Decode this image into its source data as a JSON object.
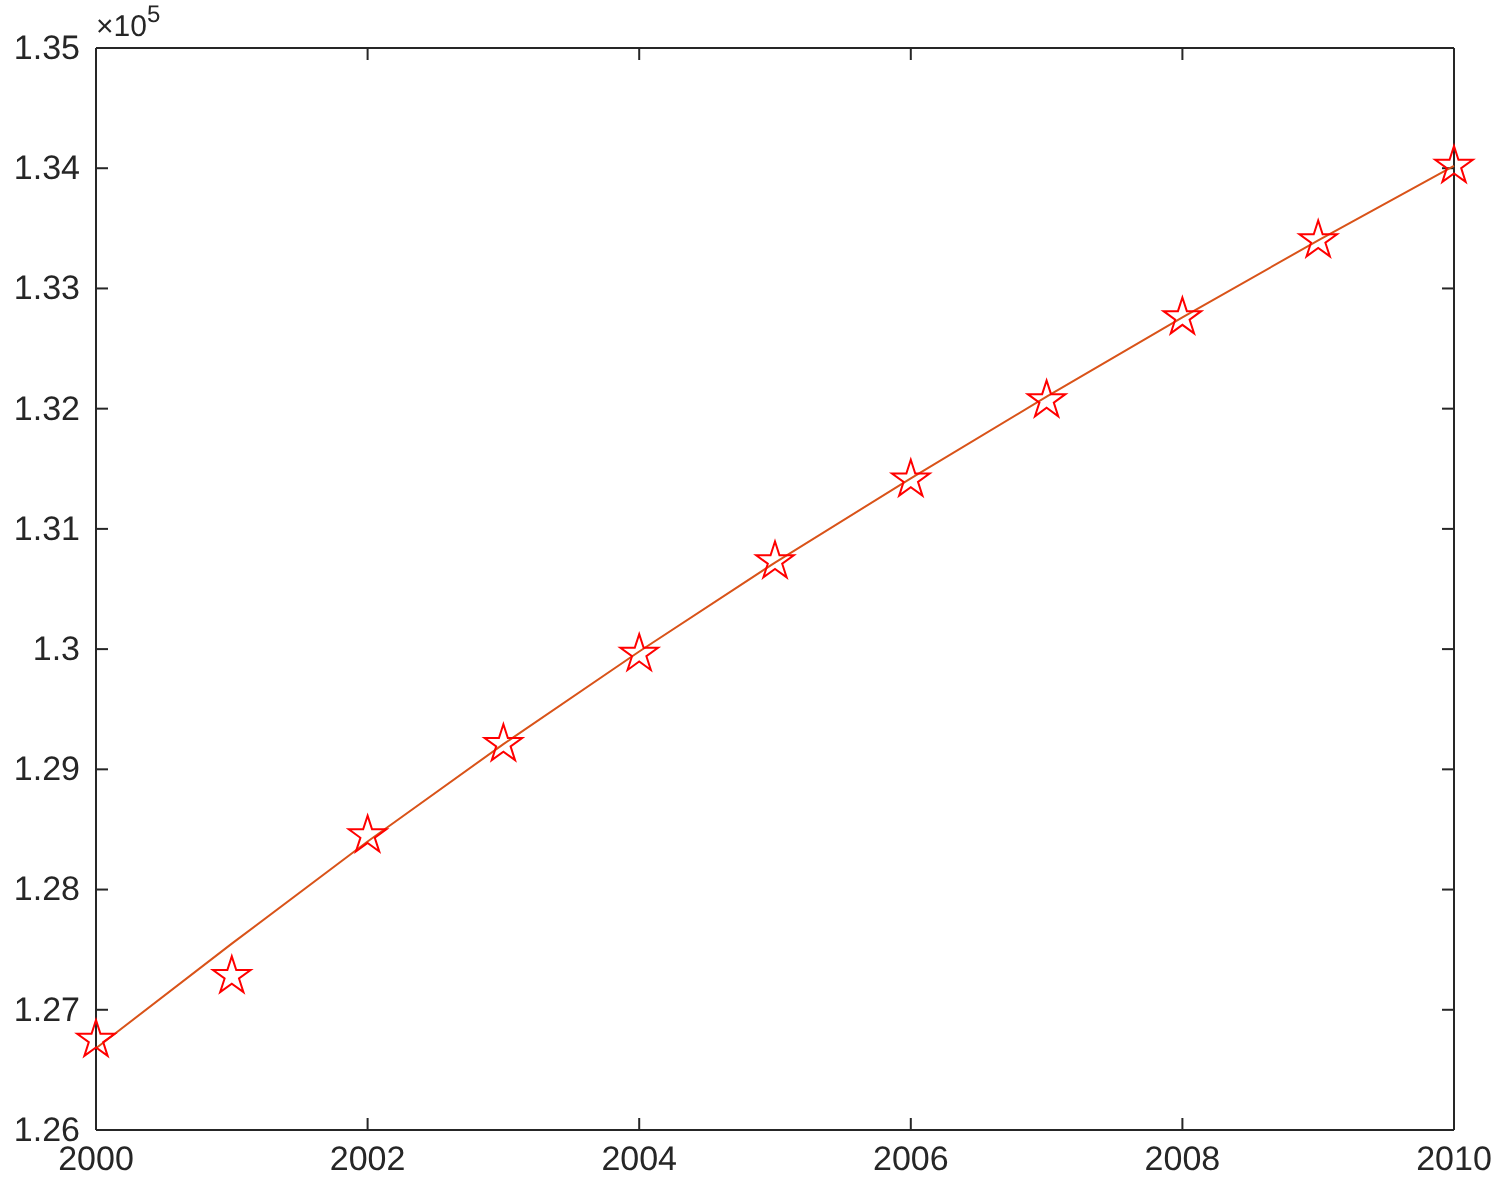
{
  "chart_data": {
    "type": "scatter",
    "x": [
      2000,
      2001,
      2002,
      2003,
      2004,
      2005,
      2006,
      2007,
      2008,
      2009,
      2010
    ],
    "series": [
      {
        "type": "line",
        "color": "#d95319",
        "marker": "none",
        "line_style": "solid",
        "values": [
          1.2668,
          1.2755,
          1.284,
          1.2921,
          1.2998,
          1.3072,
          1.3142,
          1.321,
          1.3276,
          1.334,
          1.3402
        ]
      },
      {
        "type": "scatter",
        "color": "#ff0000",
        "marker": "star",
        "values": [
          1.2675,
          1.2728,
          1.2845,
          1.2921,
          1.2996,
          1.3073,
          1.3141,
          1.3207,
          1.3276,
          1.334,
          1.3402
        ]
      }
    ],
    "xlim": [
      2000,
      2010
    ],
    "xticks": [
      2000,
      2002,
      2004,
      2006,
      2008,
      2010
    ],
    "ylim": [
      1.26,
      1.35
    ],
    "yticks": [
      1.26,
      1.27,
      1.28,
      1.29,
      {
        "value": 1.3,
        "label": "1.3"
      },
      1.31,
      1.32,
      1.33,
      1.34,
      1.35
    ],
    "annotations": [
      "×10$^{5}$"
    ],
    "grid": false
  }
}
